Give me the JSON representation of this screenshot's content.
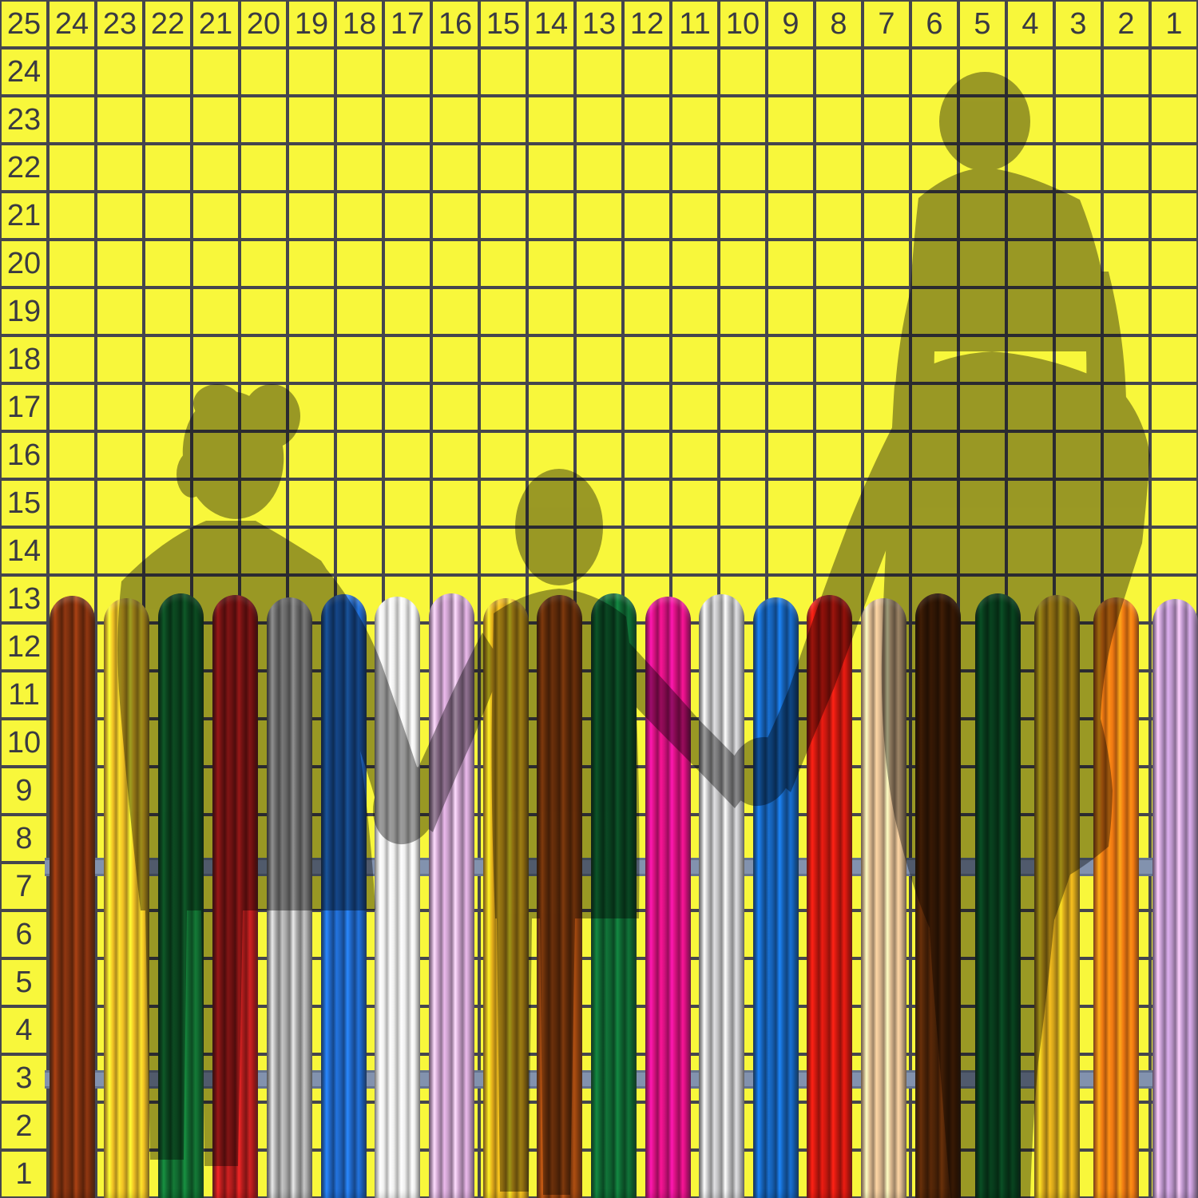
{
  "scene": {
    "title": "Family behind colorful picket fence on numbered yellow grid",
    "description": "Olive translucent silhouettes of a woman, a child and a man carrying a child on his shoulders, all holding hands, standing behind a multicolored metal picket fence drawn over a yellow spreadsheet-style grid with countdown numbers."
  },
  "grid": {
    "background_color": "#F8F73B",
    "line_color": "#45454E",
    "label_color": "#3A3A42",
    "column_labels": [
      "25",
      "24",
      "23",
      "22",
      "21",
      "20",
      "19",
      "18",
      "17",
      "16",
      "15",
      "14",
      "13",
      "12",
      "11",
      "10",
      "9",
      "8",
      "7",
      "6",
      "5",
      "4",
      "3",
      "2",
      "1"
    ],
    "row_labels": [
      "24",
      "23",
      "22",
      "21",
      "20",
      "19",
      "18",
      "17",
      "16",
      "15",
      "14",
      "13",
      "12",
      "11",
      "10",
      "9",
      "8",
      "7",
      "6",
      "5",
      "4",
      "3",
      "2",
      "1"
    ]
  },
  "fence": {
    "rail_color": "#8292AE",
    "rail_edge_color": "#65748F",
    "pickets": [
      {
        "name": "dark-red-brown",
        "color": "#7B2F0E"
      },
      {
        "name": "golden-yellow",
        "color": "#F0C125"
      },
      {
        "name": "dark-green",
        "color": "#11682F"
      },
      {
        "name": "dark-red",
        "color": "#AF1C1C"
      },
      {
        "name": "silver-gray",
        "color": "#A8A8A8"
      },
      {
        "name": "blue",
        "color": "#1E62BE"
      },
      {
        "name": "white",
        "color": "#F1F1F0"
      },
      {
        "name": "lilac-pink",
        "color": "#C89EC9"
      },
      {
        "name": "gold",
        "color": "#E2AC1B"
      },
      {
        "name": "rust-brown",
        "color": "#94430F"
      },
      {
        "name": "dark-green-2",
        "color": "#0E6330"
      },
      {
        "name": "magenta",
        "color": "#D3117F"
      },
      {
        "name": "light-silver",
        "color": "#BFBFC1"
      },
      {
        "name": "blue-2",
        "color": "#155FB2"
      },
      {
        "name": "red",
        "color": "#C9180F"
      },
      {
        "name": "tan",
        "color": "#D9B68D"
      },
      {
        "name": "dark-brown",
        "color": "#4C2307"
      },
      {
        "name": "dark-green-3",
        "color": "#0C5C2B"
      },
      {
        "name": "dark-gold",
        "color": "#D2A31A"
      },
      {
        "name": "orange",
        "color": "#EF7912"
      },
      {
        "name": "lilac",
        "color": "#BC95CB"
      }
    ]
  },
  "silhouettes": {
    "color": "#000000",
    "opacity": 0.38,
    "figures": [
      "woman",
      "child",
      "man-carrying-child"
    ]
  }
}
